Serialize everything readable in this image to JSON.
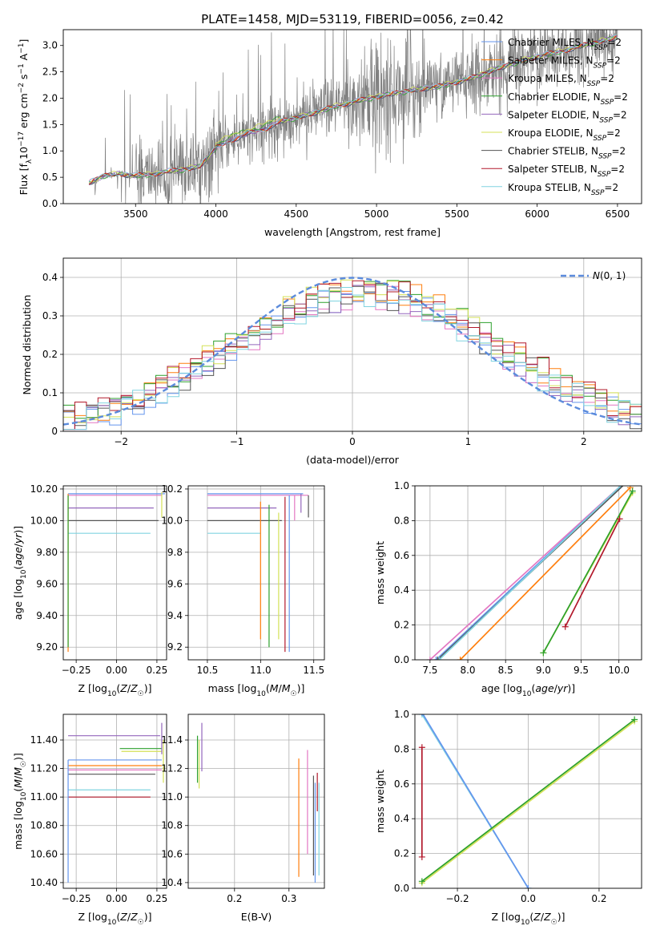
{
  "figure": {
    "title": "PLATE=1458, MJD=53119, FIBERID=0056, z=0.42"
  },
  "colors": {
    "chabrier_miles": "#6495ed",
    "salpeter_miles": "#ff7f0e",
    "kroupa_miles": "#e377c2",
    "chabrier_elodie": "#2ca02c",
    "salpeter_elodie": "#9467bd",
    "kroupa_elodie": "#d4e157",
    "chabrier_stelib": "#555555",
    "salpeter_stelib": "#b2182b",
    "kroupa_stelib": "#80d4e0",
    "data": "#808080",
    "normal": "#5b8bdc"
  },
  "chart_data": [
    {
      "id": "spectrum",
      "type": "line",
      "title": "PLATE=1458, MJD=53119, FIBERID=0056, z=0.42",
      "xlabel": "wavelength [Angstrom, rest frame]",
      "ylabel": "Flux [f_λ 10^-17 erg cm^-2 s^-1 A^-1]",
      "xlim": [
        3050,
        6650
      ],
      "ylim": [
        0,
        3.3
      ],
      "xticks": [
        3500,
        4000,
        4500,
        5000,
        5500,
        6000,
        6500
      ],
      "yticks": [
        0.0,
        0.5,
        1.0,
        1.5,
        2.0,
        2.5,
        3.0
      ],
      "data_range": [
        3210,
        6500
      ],
      "continuum": [
        [
          3210,
          0.38
        ],
        [
          3300,
          0.52
        ],
        [
          3400,
          0.56
        ],
        [
          3500,
          0.52
        ],
        [
          3600,
          0.55
        ],
        [
          3700,
          0.6
        ],
        [
          3800,
          0.64
        ],
        [
          3900,
          0.7
        ],
        [
          4000,
          1.05
        ],
        [
          4100,
          1.2
        ],
        [
          4200,
          1.32
        ],
        [
          4300,
          1.4
        ],
        [
          4400,
          1.55
        ],
        [
          4500,
          1.62
        ],
        [
          4600,
          1.7
        ],
        [
          4700,
          1.8
        ],
        [
          4800,
          1.88
        ],
        [
          4900,
          1.95
        ],
        [
          5000,
          2.02
        ],
        [
          5100,
          2.08
        ],
        [
          5200,
          2.13
        ],
        [
          5300,
          2.18
        ],
        [
          5400,
          2.22
        ],
        [
          5500,
          2.3
        ],
        [
          5600,
          2.38
        ],
        [
          5700,
          2.5
        ],
        [
          5800,
          2.6
        ],
        [
          5900,
          2.7
        ],
        [
          6000,
          2.78
        ],
        [
          6100,
          2.85
        ],
        [
          6200,
          2.92
        ],
        [
          6300,
          3.0
        ],
        [
          6400,
          3.08
        ],
        [
          6500,
          3.15
        ]
      ],
      "legend": [
        "Chabrier MILES, N_SSP=2",
        "Salpeter MILES, N_SSP=2",
        "Kroupa MILES, N_SSP=2",
        "Chabrier ELODIE, N_SSP=2",
        "Salpeter ELODIE, N_SSP=2",
        "Kroupa ELODIE, N_SSP=2",
        "Chabrier STELIB, N_SSP=2",
        "Salpeter STELIB, N_SSP=2",
        "Kroupa STELIB, N_SSP=2"
      ],
      "legend_labels": [
        {
          "pre": "Chabrier MILES, N",
          "sub": "SSP",
          "post": "=2"
        },
        {
          "pre": "Salpeter MILES, N",
          "sub": "SSP",
          "post": "=2"
        },
        {
          "pre": "Kroupa MILES, N",
          "sub": "SSP",
          "post": "=2"
        },
        {
          "pre": "Chabrier ELODIE, N",
          "sub": "SSP",
          "post": "=2"
        },
        {
          "pre": "Salpeter ELODIE, N",
          "sub": "SSP",
          "post": "=2"
        },
        {
          "pre": "Kroupa ELODIE, N",
          "sub": "SSP",
          "post": "=2"
        },
        {
          "pre": "Chabrier STELIB, N",
          "sub": "SSP",
          "post": "=2"
        },
        {
          "pre": "Salpeter STELIB, N",
          "sub": "SSP",
          "post": "=2"
        },
        {
          "pre": "Kroupa STELIB, N",
          "sub": "SSP",
          "post": "=2"
        }
      ],
      "legend_placement": "top-right",
      "grid": false
    },
    {
      "id": "residuals",
      "type": "histogram",
      "xlabel": "(data-model)/error",
      "ylabel": "Normed distribution",
      "xlim": [
        -2.5,
        2.5
      ],
      "ylim": [
        0,
        0.45
      ],
      "xticks": [
        -2,
        -1,
        0,
        1,
        2
      ],
      "yticks": [
        0.0,
        0.1,
        0.2,
        0.3,
        0.4
      ],
      "bin_width": 0.1,
      "legend": [
        "N(0,1)"
      ],
      "legend_placement": "top-right",
      "grid": true
    },
    {
      "id": "age_vs_Z",
      "type": "line",
      "xlabel": "Z [log10(Z/Z☉)]",
      "ylabel": "age [log10(age/yr)]",
      "xlim": [
        -0.33,
        0.31
      ],
      "ylim": [
        9.12,
        10.22
      ],
      "xticks": [
        -0.25,
        0.0,
        0.25
      ],
      "yticks": [
        9.2,
        9.4,
        9.6,
        9.8,
        10.0,
        10.2
      ],
      "hlines": [
        {
          "y": 10.17,
          "x0": -0.3,
          "x1": 0.3
        },
        {
          "y": 10.16,
          "x0": -0.3,
          "x1": 0.28
        },
        {
          "y": 10.08,
          "x0": -0.3,
          "x1": 0.23
        },
        {
          "y": 10.0,
          "x0": -0.3,
          "x1": 0.26
        },
        {
          "y": 9.92,
          "x0": -0.3,
          "x1": 0.21
        }
      ],
      "vlines": [
        {
          "x": -0.3,
          "y0": 9.17,
          "y1": 10.17
        },
        {
          "x": -0.3,
          "y0": 9.2,
          "y1": 10.16
        },
        {
          "x": 0.28,
          "y0": 10.02,
          "y1": 10.18
        }
      ],
      "grid": true
    },
    {
      "id": "age_vs_mass",
      "type": "line",
      "xlabel": "mass [log10(M/M☉)]",
      "ylabel": "",
      "xlim": [
        10.32,
        11.6
      ],
      "ylim": [
        9.12,
        10.22
      ],
      "xticks": [
        10.5,
        11.0,
        11.5
      ],
      "yticks": [
        9.2,
        9.4,
        9.6,
        9.8,
        10.0,
        10.2
      ],
      "hlines": [
        {
          "y": 10.17,
          "x0": 10.5,
          "x1": 11.4
        },
        {
          "y": 10.16,
          "x0": 10.5,
          "x1": 11.45
        },
        {
          "y": 10.08,
          "x0": 10.5,
          "x1": 11.15
        },
        {
          "y": 10.0,
          "x0": 10.5,
          "x1": 11.2
        },
        {
          "y": 9.92,
          "x0": 10.5,
          "x1": 11.0
        }
      ],
      "vlines": [
        {
          "x": 11.0,
          "y0": 9.25,
          "y1": 10.12
        },
        {
          "x": 11.08,
          "y0": 9.2,
          "y1": 10.1
        },
        {
          "x": 11.17,
          "y0": 9.25,
          "y1": 10.05
        },
        {
          "x": 11.23,
          "y0": 9.17,
          "y1": 10.15
        },
        {
          "x": 11.27,
          "y0": 9.17,
          "y1": 10.16
        },
        {
          "x": 11.32,
          "y0": 10.0,
          "y1": 10.16
        },
        {
          "x": 11.38,
          "y0": 10.05,
          "y1": 10.17
        },
        {
          "x": 11.45,
          "y0": 10.02,
          "y1": 10.16
        }
      ],
      "grid": true
    },
    {
      "id": "massweight_vs_age",
      "type": "line",
      "xlabel": "age [log10(age/yr)]",
      "ylabel": "mass weight",
      "xlim": [
        7.3,
        10.3
      ],
      "ylim": [
        0,
        1.0
      ],
      "xticks": [
        7.5,
        8.0,
        8.5,
        9.0,
        9.5,
        10.0
      ],
      "yticks": [
        0.0,
        0.2,
        0.4,
        0.6,
        0.8,
        1.0
      ],
      "series": [
        {
          "key": "kroupa_miles",
          "points": [
            [
              7.5,
              0.0
            ],
            [
              10.15,
              1.05
            ]
          ]
        },
        {
          "key": "chabrier_miles",
          "points": [
            [
              7.58,
              0.0
            ],
            [
              10.15,
              1.05
            ]
          ]
        },
        {
          "key": "chabrier_stelib",
          "points": [
            [
              7.6,
              0.0
            ],
            [
              10.1,
              1.02
            ]
          ]
        },
        {
          "key": "kroupa_stelib",
          "points": [
            [
              7.62,
              0.0
            ],
            [
              10.12,
              1.04
            ]
          ]
        },
        {
          "key": "salpeter_miles",
          "points": [
            [
              7.9,
              0.0
            ],
            [
              10.15,
              0.99
            ]
          ]
        },
        {
          "key": "kroupa_elodie",
          "points": [
            [
              9.0,
              0.04
            ],
            [
              10.18,
              0.96
            ]
          ]
        },
        {
          "key": "chabrier_elodie",
          "points": [
            [
              9.0,
              0.04
            ],
            [
              10.18,
              0.97
            ]
          ]
        },
        {
          "key": "salpeter_stelib",
          "points": [
            [
              9.29,
              0.19
            ],
            [
              10.01,
              0.81
            ]
          ]
        }
      ],
      "grid": true
    },
    {
      "id": "mass_vs_Z",
      "type": "line",
      "xlabel": "Z [log10(Z/Z☉)]",
      "ylabel": "mass [log10(M/M☉)]",
      "xlim": [
        -0.33,
        0.31
      ],
      "ylim": [
        10.36,
        11.58
      ],
      "xticks": [
        -0.25,
        0.0,
        0.25
      ],
      "yticks": [
        10.4,
        10.6,
        10.8,
        11.0,
        11.2,
        11.4
      ],
      "hlines": [
        {
          "key": "salpeter_elodie",
          "y": 11.43,
          "x0": -0.3,
          "x1": 0.27
        },
        {
          "key": "chabrier_elodie",
          "y": 11.34,
          "x0": 0.02,
          "x1": 0.28
        },
        {
          "key": "kroupa_elodie",
          "y": 11.32,
          "x0": 0.03,
          "x1": 0.28
        },
        {
          "key": "chabrier_miles",
          "y": 11.26,
          "x0": -0.3,
          "x1": 0.28
        },
        {
          "key": "salpeter_miles",
          "y": 11.22,
          "x0": -0.3,
          "x1": 0.28
        },
        {
          "key": "kroupa_miles",
          "y": 11.19,
          "x0": -0.3,
          "x1": 0.28
        },
        {
          "key": "chabrier_stelib",
          "y": 11.16,
          "x0": -0.3,
          "x1": 0.24
        },
        {
          "key": "kroupa_stelib",
          "y": 11.05,
          "x0": -0.3,
          "x1": 0.21
        },
        {
          "key": "salpeter_stelib",
          "y": 11.0,
          "x0": -0.3,
          "x1": 0.21
        }
      ],
      "vlines": [
        {
          "key": "chabrier_miles",
          "x": -0.3,
          "y0": 10.4,
          "y1": 11.26
        },
        {
          "key": "salpeter_elodie",
          "x": 0.28,
          "y0": 11.3,
          "y1": 11.52
        },
        {
          "key": "kroupa_elodie",
          "x": 0.29,
          "y0": 11.1,
          "y1": 11.4
        }
      ],
      "grid": true
    },
    {
      "id": "mass_vs_ebv",
      "type": "line",
      "xlabel": "E(B-V)",
      "ylabel": "",
      "xlim": [
        0.115,
        0.365
      ],
      "ylim": [
        10.36,
        11.58
      ],
      "xticks": [
        0.2,
        0.3
      ],
      "yticks": [
        10.4,
        10.6,
        10.8,
        11.0,
        11.2,
        11.4
      ],
      "vlines": [
        {
          "key": "chabrier_elodie",
          "x": 0.132,
          "y0": 11.1,
          "y1": 11.43
        },
        {
          "key": "kroupa_elodie",
          "x": 0.135,
          "y0": 11.06,
          "y1": 11.4
        },
        {
          "key": "salpeter_elodie",
          "x": 0.14,
          "y0": 11.18,
          "y1": 11.52
        },
        {
          "key": "salpeter_miles",
          "x": 0.318,
          "y0": 10.44,
          "y1": 11.27
        },
        {
          "key": "kroupa_miles",
          "x": 0.334,
          "y0": 10.6,
          "y1": 11.33
        },
        {
          "key": "chabrier_stelib",
          "x": 0.345,
          "y0": 10.45,
          "y1": 11.15
        },
        {
          "key": "chabrier_miles",
          "x": 0.348,
          "y0": 10.4,
          "y1": 11.1
        },
        {
          "key": "salpeter_stelib",
          "x": 0.352,
          "y0": 10.9,
          "y1": 11.17
        },
        {
          "key": "kroupa_stelib",
          "x": 0.355,
          "y0": 10.45,
          "y1": 11.1
        }
      ],
      "grid": true
    },
    {
      "id": "massweight_vs_Z",
      "type": "line",
      "xlabel": "Z [log10(Z/Z☉)]",
      "ylabel": "mass weight",
      "xlim": [
        -0.32,
        0.32
      ],
      "ylim": [
        0,
        1.0
      ],
      "xticks": [
        -0.2,
        0.0,
        0.2
      ],
      "yticks": [
        0.0,
        0.2,
        0.4,
        0.6,
        0.8,
        1.0
      ],
      "series": [
        {
          "key": "kroupa_stelib",
          "points": [
            [
              -0.3,
              1.0
            ],
            [
              0.0,
              0.0
            ]
          ]
        },
        {
          "key": "chabrier_miles",
          "points": [
            [
              -0.3,
              1.01
            ],
            [
              0.0,
              0.0
            ]
          ]
        },
        {
          "key": "kroupa_elodie",
          "points": [
            [
              -0.3,
              0.03
            ],
            [
              0.3,
              0.96
            ]
          ]
        },
        {
          "key": "chabrier_elodie",
          "points": [
            [
              -0.3,
              0.04
            ],
            [
              0.3,
              0.97
            ]
          ]
        },
        {
          "key": "salpeter_stelib",
          "points": [
            [
              -0.3,
              0.18
            ],
            [
              -0.3,
              0.81
            ]
          ]
        }
      ],
      "grid": true
    }
  ]
}
